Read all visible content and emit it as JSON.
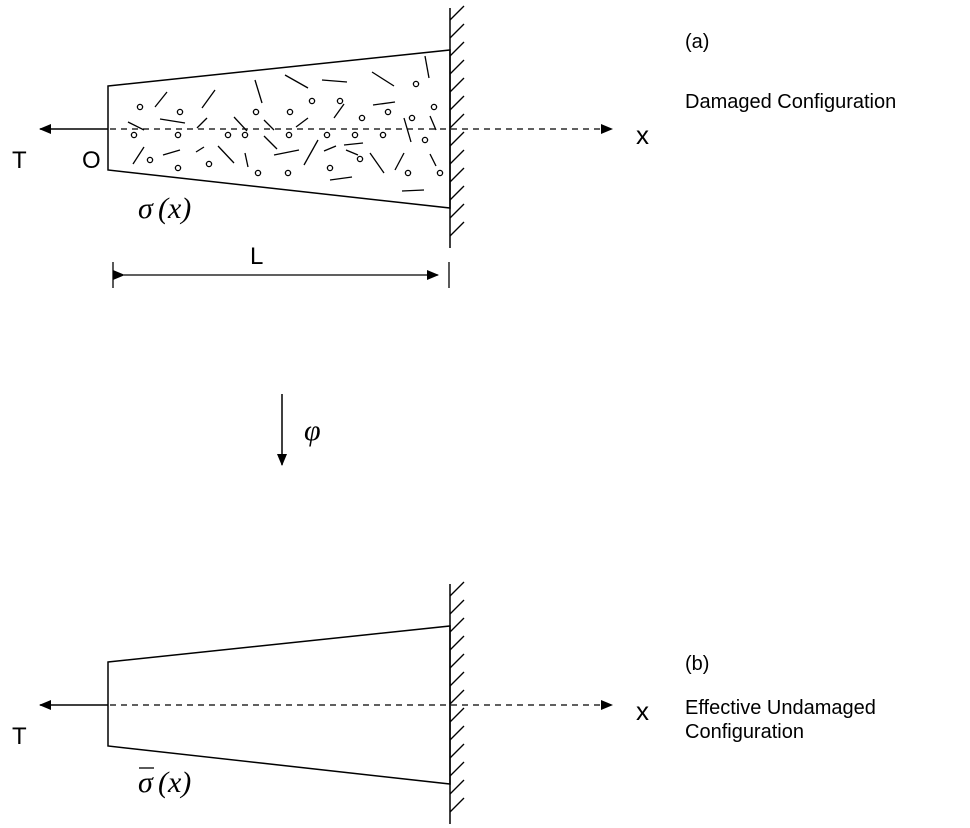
{
  "diagram_a": {
    "panel_label": "(a)",
    "caption": "Damaged Configuration",
    "load_label": "T",
    "origin_label": "O",
    "axis_label": "x",
    "stress_symbol": "σ",
    "stress_argument": "(x)",
    "length_label": "L"
  },
  "map_label": "φ",
  "diagram_b": {
    "panel_label": "(b)",
    "caption_line1": "Effective Undamaged",
    "caption_line2": "Configuration",
    "load_label": "T",
    "axis_label": "x",
    "stress_symbol": "σ",
    "stress_argument": "(x)"
  },
  "colors": {
    "ink": "#000000",
    "background": "#ffffff"
  }
}
